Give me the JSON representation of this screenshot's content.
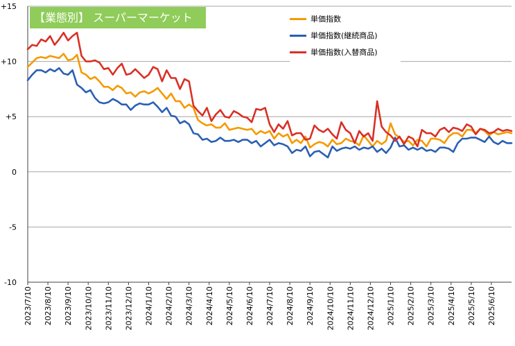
{
  "chart_data": {
    "type": "line",
    "title": "【業態別】 スーパーマーケット",
    "xlabel": "",
    "ylabel": "",
    "ylim": [
      -10,
      15
    ],
    "yticks": [
      15,
      10,
      5,
      0,
      -5,
      -10
    ],
    "ytick_labels": [
      "+15",
      "+10",
      "+5",
      "0",
      "-5",
      "-10"
    ],
    "grid": "horizontal",
    "legend_position": "top-right",
    "x_labels": [
      "2023/7/10",
      "2023/8/10",
      "2023/9/10",
      "2023/10/10",
      "2023/11/10",
      "2023/12/10",
      "2024/1/10",
      "2024/2/10",
      "2024/3/10",
      "2024/4/10",
      "2024/5/10",
      "2024/6/10",
      "2024/7/10",
      "2024/8/10",
      "2024/9/10",
      "2024/10/10",
      "2024/11/10",
      "2024/12/10",
      "2025/1/10",
      "2025/2/10",
      "2025/3/10",
      "2025/4/10",
      "2025/5/10",
      "2025/6/10"
    ],
    "series": [
      {
        "name": "単価指数",
        "color": "#f59a00",
        "values": [
          9.5,
          9.9,
          10.3,
          10.4,
          10.3,
          10.5,
          10.4,
          10.3,
          10.7,
          10.1,
          10.2,
          10.6,
          9.0,
          8.8,
          8.4,
          8.6,
          8.2,
          7.7,
          7.7,
          7.4,
          7.8,
          7.6,
          7.1,
          7.2,
          6.8,
          7.2,
          7.3,
          7.1,
          7.3,
          7.6,
          7.1,
          6.6,
          7.1,
          6.4,
          6.4,
          5.8,
          6.1,
          5.8,
          4.7,
          4.4,
          4.2,
          4.3,
          4.0,
          4.0,
          4.4,
          3.8,
          3.9,
          4.0,
          3.9,
          3.8,
          3.9,
          3.4,
          3.7,
          3.5,
          3.7,
          3.0,
          3.5,
          3.2,
          3.4,
          2.6,
          2.9,
          2.6,
          3.2,
          2.2,
          2.5,
          2.7,
          2.6,
          2.3,
          2.9,
          2.5,
          2.6,
          3.0,
          2.8,
          2.7,
          2.4,
          3.3,
          2.8,
          2.3,
          2.8,
          2.5,
          2.8,
          4.4,
          3.4,
          3.1,
          2.7,
          2.8,
          2.4,
          2.9,
          2.8,
          2.3,
          3.0,
          3.0,
          2.9,
          2.6,
          3.2,
          3.5,
          3.5,
          3.2,
          3.8,
          3.8,
          3.5,
          3.9,
          3.7,
          3.3,
          3.6,
          3.4,
          3.5,
          3.6,
          3.5
        ],
        "smooth": true
      },
      {
        "name": "単価指数(継続商品)",
        "color": "#2a5fb4",
        "values": [
          8.3,
          8.8,
          9.2,
          9.2,
          9.0,
          9.3,
          9.1,
          9.4,
          8.9,
          8.8,
          9.2,
          7.9,
          7.6,
          7.2,
          7.4,
          6.7,
          6.3,
          6.2,
          6.3,
          6.6,
          6.4,
          6.1,
          6.1,
          5.6,
          6.0,
          6.2,
          6.1,
          6.1,
          6.3,
          5.9,
          5.4,
          5.8,
          5.1,
          5.0,
          4.4,
          4.6,
          4.3,
          3.5,
          3.4,
          2.9,
          3.0,
          2.7,
          2.8,
          3.1,
          2.8,
          2.8,
          2.9,
          2.7,
          2.9,
          2.9,
          2.6,
          2.8,
          2.3,
          2.6,
          2.9,
          2.4,
          2.6,
          2.5,
          2.3,
          1.7,
          2.0,
          1.9,
          2.3,
          1.4,
          1.8,
          1.9,
          1.6,
          1.3,
          2.3,
          1.9,
          2.1,
          2.2,
          2.1,
          2.3,
          2.0,
          2.2,
          2.1,
          2.3,
          1.8,
          2.1,
          1.7,
          2.2,
          3.1,
          2.3,
          2.4,
          2.0,
          2.2,
          2.0,
          2.2,
          1.9,
          2.0,
          1.8,
          2.2,
          2.2,
          2.1,
          1.8,
          2.6,
          3.0,
          3.0,
          3.1,
          3.1,
          2.9,
          2.7,
          3.2,
          2.7,
          2.5,
          2.8,
          2.6,
          2.6
        ],
        "smooth": true
      },
      {
        "name": "単価指数(入替商品)",
        "color": "#d93025",
        "values": [
          11.1,
          11.5,
          11.4,
          12.0,
          11.8,
          12.3,
          11.5,
          12.0,
          12.6,
          11.9,
          12.3,
          12.6,
          10.5,
          10.0,
          10.0,
          10.1,
          9.9,
          9.3,
          9.4,
          8.8,
          9.4,
          9.8,
          8.8,
          8.9,
          9.3,
          8.9,
          8.5,
          8.8,
          9.5,
          9.3,
          8.2,
          9.2,
          8.5,
          8.5,
          7.5,
          8.4,
          8.2,
          6.0,
          5.5,
          5.1,
          5.8,
          4.6,
          5.2,
          5.6,
          5.0,
          4.9,
          5.5,
          5.3,
          5.0,
          4.9,
          4.5,
          5.7,
          5.6,
          5.8,
          4.3,
          3.6,
          4.3,
          3.9,
          4.6,
          3.3,
          3.5,
          3.5,
          2.9,
          3.0,
          4.2,
          3.8,
          3.6,
          3.9,
          3.4,
          3.0,
          4.5,
          3.8,
          3.5,
          2.6,
          3.7,
          3.2,
          3.5,
          2.8,
          6.4,
          4.1,
          3.6,
          3.3,
          2.8,
          3.2,
          2.5,
          3.2,
          3.0,
          2.3,
          3.8,
          3.5,
          3.5,
          3.2,
          3.8,
          4.0,
          3.6,
          4.0,
          3.9,
          3.7,
          4.3,
          4.1,
          3.4,
          3.9,
          3.8,
          3.5,
          3.6,
          3.9,
          3.7,
          3.8,
          3.7
        ],
        "smooth": true
      }
    ]
  }
}
